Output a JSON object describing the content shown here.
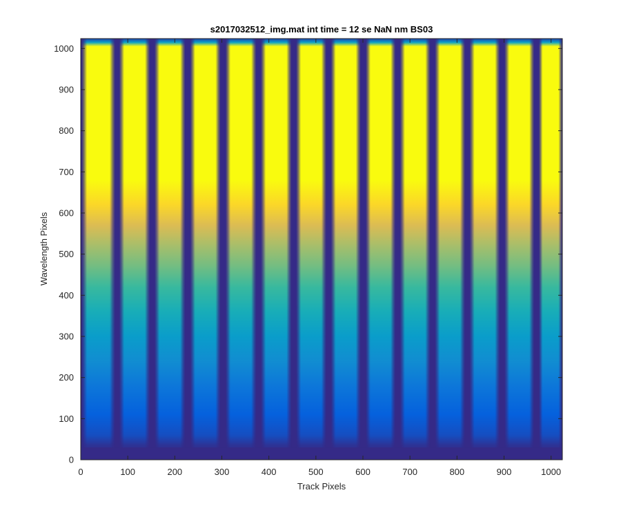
{
  "chart_data": {
    "type": "heatmap",
    "title": "s2017032512_img.mat int time = 12 se  NaN nm BS03",
    "xlabel": "Track Pixels",
    "ylabel": "Wavelength Pixels",
    "xlim": [
      0,
      1024
    ],
    "ylim": [
      0,
      1024
    ],
    "xticks": [
      0,
      100,
      200,
      300,
      400,
      500,
      600,
      700,
      800,
      900,
      1000
    ],
    "yticks": [
      0,
      100,
      200,
      300,
      400,
      500,
      600,
      700,
      800,
      900,
      1000
    ],
    "grid": false,
    "colormap": "parula",
    "colors": [
      "#352a87",
      "#0363e1",
      "#1485d4",
      "#06a7c6",
      "#38b99e",
      "#92bf73",
      "#d9ba56",
      "#fcce2e",
      "#f9fb0e"
    ],
    "tracks": [
      {
        "x_start": 2,
        "x_end": 73
      },
      {
        "x_start": 82,
        "x_end": 147
      },
      {
        "x_start": 157,
        "x_end": 222
      },
      {
        "x_start": 233,
        "x_end": 297
      },
      {
        "x_start": 308,
        "x_end": 373
      },
      {
        "x_start": 383,
        "x_end": 448
      },
      {
        "x_start": 458,
        "x_end": 522
      },
      {
        "x_start": 532,
        "x_end": 595
      },
      {
        "x_start": 606,
        "x_end": 669
      },
      {
        "x_start": 679,
        "x_end": 743
      },
      {
        "x_start": 753,
        "x_end": 817
      },
      {
        "x_start": 827,
        "x_end": 891
      },
      {
        "x_start": 901,
        "x_end": 964
      },
      {
        "x_start": 974,
        "x_end": 1024
      }
    ],
    "intensity_by_wavelength": {
      "wavelength": [
        0,
        35,
        60,
        110,
        180,
        240,
        300,
        360,
        420,
        470,
        520,
        570,
        620,
        680,
        740,
        1005,
        1015,
        1024
      ],
      "level": [
        0.0,
        0.02,
        0.08,
        0.12,
        0.2,
        0.28,
        0.34,
        0.42,
        0.5,
        0.58,
        0.66,
        0.76,
        0.9,
        1.0,
        1.0,
        1.0,
        0.35,
        0.05
      ]
    }
  }
}
